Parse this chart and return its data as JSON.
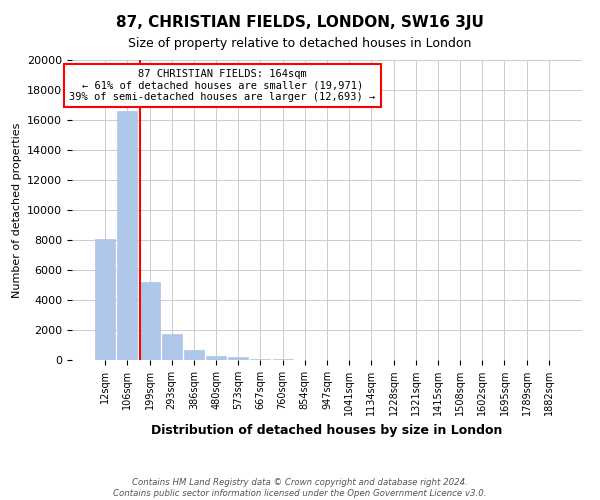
{
  "title": "87, CHRISTIAN FIELDS, LONDON, SW16 3JU",
  "subtitle": "Size of property relative to detached houses in London",
  "xlabel": "Distribution of detached houses by size in London",
  "ylabel": "Number of detached properties",
  "bar_labels": [
    "12sqm",
    "106sqm",
    "199sqm",
    "293sqm",
    "386sqm",
    "480sqm",
    "573sqm",
    "667sqm",
    "760sqm",
    "854sqm",
    "947sqm",
    "1041sqm",
    "1134sqm",
    "1228sqm",
    "1321sqm",
    "1415sqm",
    "1508sqm",
    "1602sqm",
    "1695sqm",
    "1789sqm",
    "1882sqm"
  ],
  "bar_values": [
    8050,
    16600,
    5200,
    1750,
    700,
    250,
    180,
    100,
    50,
    0,
    0,
    0,
    0,
    0,
    0,
    0,
    0,
    0,
    0,
    0,
    0
  ],
  "bar_color": "#aec6e8",
  "bar_edgecolor": "#aec6e8",
  "vline_x": 1.58,
  "vline_color": "red",
  "ylim": [
    0,
    20000
  ],
  "yticks": [
    0,
    2000,
    4000,
    6000,
    8000,
    10000,
    12000,
    14000,
    16000,
    18000,
    20000
  ],
  "annotation_title": "87 CHRISTIAN FIELDS: 164sqm",
  "annotation_line1": "← 61% of detached houses are smaller (19,971)",
  "annotation_line2": "39% of semi-detached houses are larger (12,693) →",
  "annotation_box_color": "#ffffff",
  "annotation_box_edgecolor": "red",
  "footer_line1": "Contains HM Land Registry data © Crown copyright and database right 2024.",
  "footer_line2": "Contains public sector information licensed under the Open Government Licence v3.0.",
  "grid_color": "#cccccc",
  "background_color": "#ffffff",
  "fig_width": 6.0,
  "fig_height": 5.0
}
